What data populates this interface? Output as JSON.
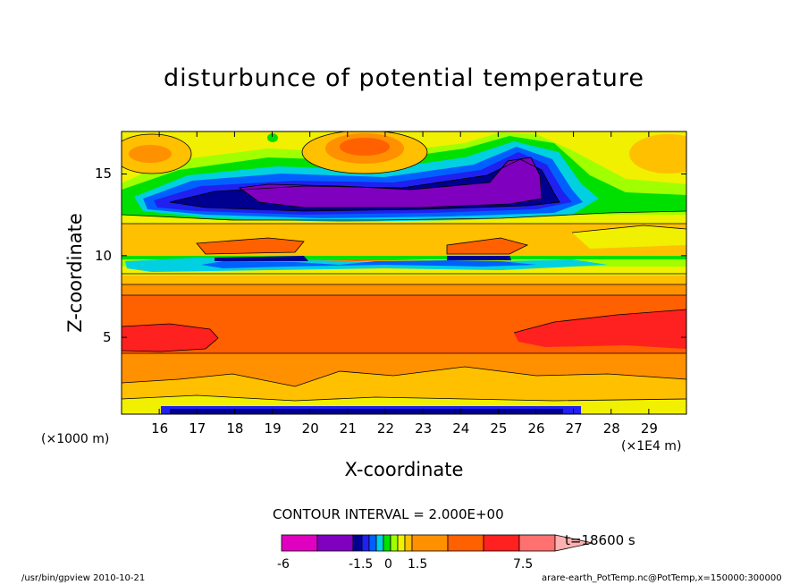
{
  "chart_data": {
    "type": "heatmap",
    "title": "disturbunce of potential temperature",
    "xlabel": "X-coordinate",
    "ylabel": "Z-coordinate",
    "x_unit_left": "(×1000 m)",
    "x_unit_right": "(×1E4 m)",
    "xlim": [
      15.0,
      30.0
    ],
    "ylim": [
      0.3,
      17.6
    ],
    "x_ticks": [
      "16",
      "17",
      "18",
      "19",
      "20",
      "21",
      "22",
      "23",
      "24",
      "25",
      "26",
      "27",
      "28",
      "29"
    ],
    "y_ticks": [
      "5",
      "10",
      "15"
    ],
    "contour_interval": "CONTOUR INTERVAL = 2.000E+00",
    "time_label": "t=18600 s",
    "colorbar": {
      "colors": [
        "#e000c0",
        "#8000c0",
        "#000090",
        "#2020f0",
        "#0060ff",
        "#00d0e0",
        "#00e000",
        "#a0ff00",
        "#f0f000",
        "#ffc000",
        "#ff9000",
        "#ff6000",
        "#ff2020",
        "#ff7070",
        "#ffb0b0"
      ],
      "labels": [
        "-6",
        "-1.5",
        "0",
        "1.5",
        "7.5"
      ]
    },
    "footer_left": "/usr/bin/gpview   2010-10-21",
    "footer_right": "arare-earth_PotTemp.nc@PotTemp,x=150000:300000"
  }
}
